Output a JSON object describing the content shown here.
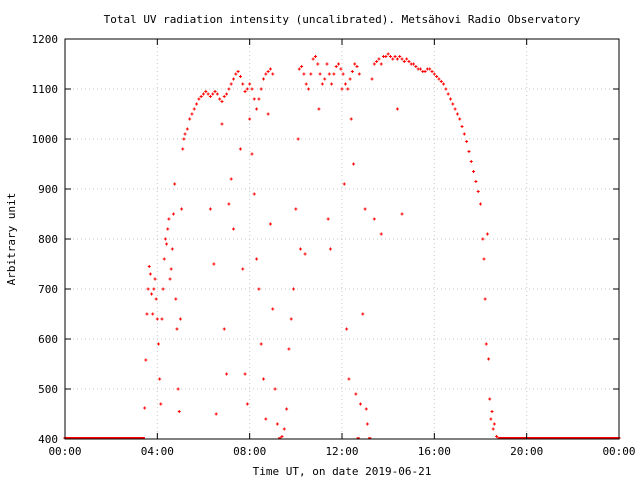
{
  "chart_data": {
    "type": "scatter",
    "title": "Total UV radiation intensity (uncalibrated). Metsähovi Radio Observatory",
    "xlabel": "Time UT, on date 2019-06-21",
    "ylabel": "Arbitrary unit",
    "xlim": [
      0,
      24
    ],
    "ylim": [
      400,
      1200
    ],
    "x_unit": "hours UT",
    "xticks": [
      0,
      4,
      8,
      12,
      16,
      20,
      24
    ],
    "xtick_labels": [
      "00:00",
      "04:00",
      "08:00",
      "12:00",
      "16:00",
      "20:00",
      "00:00"
    ],
    "yticks": [
      400,
      500,
      600,
      700,
      800,
      900,
      1000,
      1100,
      1200
    ],
    "ytick_labels": [
      "400",
      "500",
      "600",
      "700",
      "800",
      "900",
      "1000",
      "1100",
      "1200"
    ],
    "grid": true,
    "legend": "none",
    "marker_color": "#ff0000",
    "series": [
      {
        "points": [
          [
            0.0,
            400
          ],
          [
            1.0,
            400
          ],
          [
            2.0,
            400
          ],
          [
            3.0,
            400
          ],
          [
            3.4,
            400
          ],
          [
            3.45,
            462
          ],
          [
            3.5,
            558
          ],
          [
            3.55,
            650
          ],
          [
            3.6,
            700
          ],
          [
            3.65,
            745
          ],
          [
            3.7,
            730
          ],
          [
            3.75,
            690
          ],
          [
            3.8,
            650
          ],
          [
            3.85,
            700
          ],
          [
            3.9,
            720
          ],
          [
            3.95,
            680
          ],
          [
            4.0,
            640
          ],
          [
            4.05,
            590
          ],
          [
            4.1,
            520
          ],
          [
            4.15,
            470
          ],
          [
            4.2,
            640
          ],
          [
            4.25,
            700
          ],
          [
            4.3,
            760
          ],
          [
            4.35,
            800
          ],
          [
            4.4,
            790
          ],
          [
            4.45,
            820
          ],
          [
            4.5,
            840
          ],
          [
            4.55,
            720
          ],
          [
            4.6,
            740
          ],
          [
            4.65,
            780
          ],
          [
            4.7,
            850
          ],
          [
            4.75,
            910
          ],
          [
            4.8,
            680
          ],
          [
            4.85,
            620
          ],
          [
            4.9,
            500
          ],
          [
            4.95,
            455
          ],
          [
            5.0,
            640
          ],
          [
            5.05,
            860
          ],
          [
            5.1,
            980
          ],
          [
            5.15,
            1000
          ],
          [
            5.2,
            1010
          ],
          [
            5.3,
            1020
          ],
          [
            5.4,
            1040
          ],
          [
            5.5,
            1050
          ],
          [
            5.6,
            1060
          ],
          [
            5.7,
            1070
          ],
          [
            5.8,
            1080
          ],
          [
            5.9,
            1085
          ],
          [
            6.0,
            1090
          ],
          [
            6.1,
            1095
          ],
          [
            6.2,
            1090
          ],
          [
            6.3,
            1085
          ],
          [
            6.4,
            1090
          ],
          [
            6.5,
            1095
          ],
          [
            6.6,
            1090
          ],
          [
            6.7,
            1080
          ],
          [
            6.8,
            1075
          ],
          [
            6.9,
            1085
          ],
          [
            7.0,
            1090
          ],
          [
            7.1,
            1100
          ],
          [
            7.2,
            1110
          ],
          [
            7.3,
            1120
          ],
          [
            7.4,
            1130
          ],
          [
            7.5,
            1135
          ],
          [
            7.6,
            1125
          ],
          [
            7.7,
            1110
          ],
          [
            7.8,
            1095
          ],
          [
            7.9,
            1100
          ],
          [
            8.0,
            1110
          ],
          [
            8.1,
            1100
          ],
          [
            8.2,
            1080
          ],
          [
            8.3,
            1060
          ],
          [
            8.4,
            1080
          ],
          [
            8.5,
            1100
          ],
          [
            8.6,
            1120
          ],
          [
            8.7,
            1130
          ],
          [
            8.8,
            1135
          ],
          [
            8.9,
            1140
          ],
          [
            9.0,
            1130
          ],
          [
            6.3,
            860
          ],
          [
            6.45,
            750
          ],
          [
            6.55,
            450
          ],
          [
            6.8,
            1030
          ],
          [
            6.9,
            620
          ],
          [
            7.0,
            530
          ],
          [
            7.1,
            870
          ],
          [
            7.2,
            920
          ],
          [
            7.3,
            820
          ],
          [
            7.6,
            980
          ],
          [
            7.7,
            740
          ],
          [
            7.8,
            530
          ],
          [
            7.9,
            470
          ],
          [
            8.0,
            1040
          ],
          [
            8.1,
            970
          ],
          [
            8.2,
            890
          ],
          [
            8.3,
            760
          ],
          [
            8.4,
            700
          ],
          [
            8.5,
            590
          ],
          [
            8.6,
            520
          ],
          [
            8.7,
            440
          ],
          [
            8.8,
            1050
          ],
          [
            8.9,
            830
          ],
          [
            9.0,
            660
          ],
          [
            9.1,
            500
          ],
          [
            9.2,
            430
          ],
          [
            9.3,
            400
          ],
          [
            9.4,
            405
          ],
          [
            9.5,
            420
          ],
          [
            9.6,
            460
          ],
          [
            9.7,
            580
          ],
          [
            9.8,
            640
          ],
          [
            9.9,
            700
          ],
          [
            10.0,
            860
          ],
          [
            10.1,
            1000
          ],
          [
            10.15,
            1140
          ],
          [
            10.25,
            1145
          ],
          [
            10.35,
            1130
          ],
          [
            10.45,
            1110
          ],
          [
            10.55,
            1100
          ],
          [
            10.65,
            1130
          ],
          [
            10.75,
            1160
          ],
          [
            10.85,
            1165
          ],
          [
            10.95,
            1150
          ],
          [
            11.05,
            1130
          ],
          [
            11.15,
            1110
          ],
          [
            11.25,
            1120
          ],
          [
            11.35,
            1150
          ],
          [
            11.45,
            1130
          ],
          [
            11.55,
            1110
          ],
          [
            11.65,
            1130
          ],
          [
            11.75,
            1145
          ],
          [
            11.85,
            1150
          ],
          [
            11.95,
            1140
          ],
          [
            12.05,
            1130
          ],
          [
            12.15,
            1110
          ],
          [
            12.25,
            1100
          ],
          [
            12.35,
            1120
          ],
          [
            12.45,
            1135
          ],
          [
            12.55,
            1150
          ],
          [
            12.65,
            1145
          ],
          [
            12.75,
            1130
          ],
          [
            10.2,
            780
          ],
          [
            10.4,
            770
          ],
          [
            11.0,
            1060
          ],
          [
            11.4,
            840
          ],
          [
            11.5,
            780
          ],
          [
            12.0,
            1100
          ],
          [
            12.1,
            910
          ],
          [
            12.2,
            620
          ],
          [
            12.3,
            520
          ],
          [
            12.4,
            1040
          ],
          [
            12.5,
            950
          ],
          [
            12.6,
            490
          ],
          [
            12.7,
            400
          ],
          [
            12.8,
            470
          ],
          [
            12.9,
            650
          ],
          [
            13.0,
            860
          ],
          [
            13.05,
            460
          ],
          [
            13.1,
            430
          ],
          [
            13.2,
            400
          ],
          [
            13.3,
            1120
          ],
          [
            13.4,
            1150
          ],
          [
            13.5,
            1155
          ],
          [
            13.6,
            1160
          ],
          [
            13.7,
            1150
          ],
          [
            13.8,
            1165
          ],
          [
            13.9,
            1165
          ],
          [
            14.0,
            1170
          ],
          [
            14.1,
            1165
          ],
          [
            14.2,
            1160
          ],
          [
            14.3,
            1165
          ],
          [
            14.4,
            1160
          ],
          [
            14.5,
            1165
          ],
          [
            14.6,
            1160
          ],
          [
            14.7,
            1155
          ],
          [
            14.8,
            1160
          ],
          [
            14.9,
            1155
          ],
          [
            15.0,
            1150
          ],
          [
            15.1,
            1150
          ],
          [
            15.2,
            1145
          ],
          [
            15.3,
            1140
          ],
          [
            15.4,
            1140
          ],
          [
            15.5,
            1135
          ],
          [
            15.6,
            1135
          ],
          [
            15.7,
            1140
          ],
          [
            15.8,
            1140
          ],
          [
            15.9,
            1135
          ],
          [
            16.0,
            1130
          ],
          [
            13.4,
            840
          ],
          [
            13.7,
            810
          ],
          [
            14.4,
            1060
          ],
          [
            14.6,
            850
          ],
          [
            16.1,
            1125
          ],
          [
            16.2,
            1120
          ],
          [
            16.3,
            1115
          ],
          [
            16.4,
            1110
          ],
          [
            16.5,
            1100
          ],
          [
            16.6,
            1090
          ],
          [
            16.7,
            1080
          ],
          [
            16.8,
            1070
          ],
          [
            16.9,
            1060
          ],
          [
            17.0,
            1050
          ],
          [
            17.1,
            1040
          ],
          [
            17.2,
            1025
          ],
          [
            17.3,
            1010
          ],
          [
            17.4,
            995
          ],
          [
            17.5,
            975
          ],
          [
            17.6,
            955
          ],
          [
            17.7,
            935
          ],
          [
            17.8,
            915
          ],
          [
            17.9,
            895
          ],
          [
            18.0,
            870
          ],
          [
            18.1,
            800
          ],
          [
            18.15,
            760
          ],
          [
            18.2,
            680
          ],
          [
            18.25,
            590
          ],
          [
            18.3,
            810
          ],
          [
            18.35,
            560
          ],
          [
            18.4,
            480
          ],
          [
            18.45,
            440
          ],
          [
            18.5,
            455
          ],
          [
            18.55,
            420
          ],
          [
            18.6,
            430
          ],
          [
            18.7,
            405
          ],
          [
            18.8,
            400
          ],
          [
            19.0,
            400
          ],
          [
            20.0,
            400
          ],
          [
            21.0,
            400
          ],
          [
            22.0,
            400
          ],
          [
            23.0,
            400
          ],
          [
            24.0,
            400
          ]
        ]
      }
    ]
  }
}
